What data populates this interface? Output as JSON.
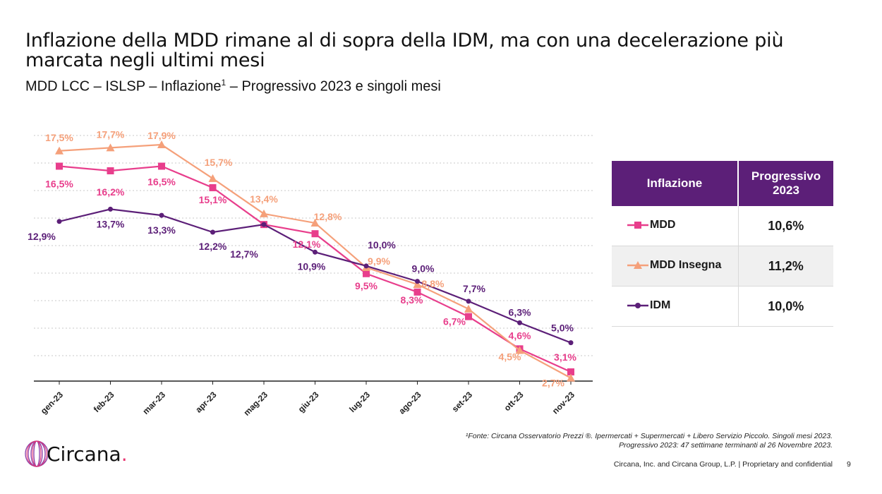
{
  "title": "Inflazione della MDD rimane al di sopra della IDM, ma con una decelerazione più marcata negli ultimi mesi",
  "subtitle": "MDD LCC – ISLSP – Inflazione",
  "subtitle_sup": "1",
  "subtitle_tail": " – Progressivo 2023 e singoli mesi",
  "colors": {
    "MDD": "#e83e8c",
    "MDD Insegna": "#f5a07a",
    "IDM": "#5c1f78",
    "header": "#5c1f78"
  },
  "chart_data": {
    "type": "line",
    "x": [
      "gen-23",
      "feb-23",
      "mar-23",
      "apr-23",
      "mag-23",
      "giu-23",
      "lug-23",
      "ago-23",
      "set-23",
      "ott-23",
      "nov-23"
    ],
    "series": [
      {
        "name": "MDD",
        "labels": [
          "16,5%",
          "16,2%",
          "16,5%",
          "15,1%",
          "",
          "12,1%",
          "9,5%",
          "8,3%",
          "6,7%",
          "4,6%",
          "3,1%"
        ],
        "values": [
          16.5,
          16.2,
          16.5,
          15.1,
          12.7,
          12.1,
          9.5,
          8.3,
          6.7,
          4.6,
          3.1
        ]
      },
      {
        "name": "MDD Insegna",
        "labels": [
          "17,5%",
          "17,7%",
          "17,9%",
          "15,7%",
          "13,4%",
          "12,8%",
          "9,9%",
          "8,8%",
          "",
          "4,5%",
          "2,7%"
        ],
        "values": [
          17.5,
          17.7,
          17.9,
          15.7,
          13.4,
          12.8,
          9.9,
          8.8,
          7.2,
          4.5,
          2.7
        ]
      },
      {
        "name": "IDM",
        "labels": [
          "12,9%",
          "13,7%",
          "13,3%",
          "12,2%",
          "12,7%",
          "10,9%",
          "10,0%",
          "9,0%",
          "7,7%",
          "6,3%",
          "5,0%"
        ],
        "values": [
          12.9,
          13.7,
          13.3,
          12.2,
          12.7,
          10.9,
          10.0,
          9.0,
          7.7,
          6.3,
          5.0
        ]
      }
    ],
    "ylim": [
      2.5,
      18.5
    ],
    "grid": true
  },
  "table": {
    "header_col1": "Inflazione",
    "header_col2": "Progressivo 2023",
    "rows": [
      {
        "name": "MDD",
        "value": "10,6%"
      },
      {
        "name": "MDD Insegna",
        "value": "11,2%"
      },
      {
        "name": "IDM",
        "value": "10,0%"
      }
    ]
  },
  "footnote_line1": "¹Fonte: Circana Osservatorio Prezzi ®. Ipermercati + Supermercati + Libero Servizio Piccolo. Singoli mesi 2023.",
  "footnote_line2": "Progressivo 2023: 47 settimane terminanti al 26 Novembre 2023.",
  "footer": "Circana, Inc. and Circana Group, L.P. |  Proprietary and confidential",
  "page_number": "9",
  "logo_text": "Circana",
  "logo_dot": "."
}
